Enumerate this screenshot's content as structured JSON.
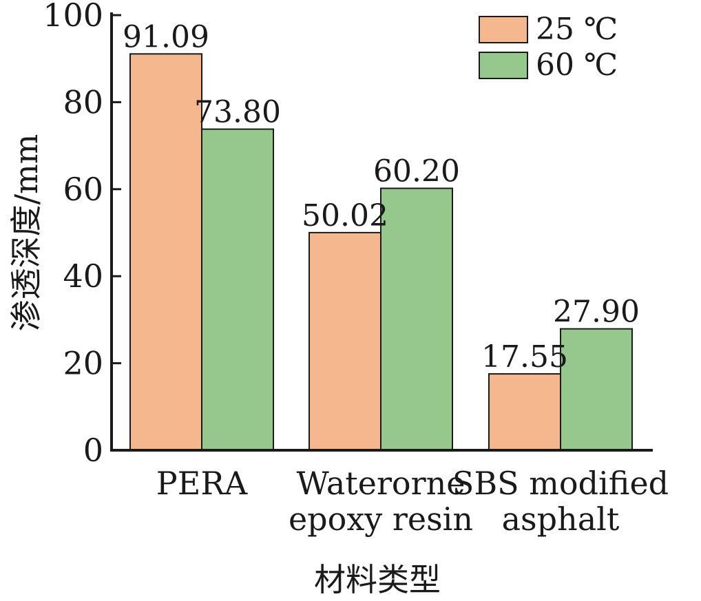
{
  "colors": {
    "series_25": "#F5B78E",
    "series_60": "#96C88E",
    "axis": "#1a1a1a"
  },
  "chart_data": {
    "type": "bar",
    "title": "",
    "xlabel": "材料类型",
    "ylabel": "渗透深度/mm",
    "ylim": [
      0,
      100
    ],
    "yticks": [
      0,
      20,
      40,
      60,
      80,
      100
    ],
    "categories": [
      [
        "PERA"
      ],
      [
        "Waterorne",
        "epoxy resin"
      ],
      [
        "SBS modified",
        "asphalt"
      ]
    ],
    "series": [
      {
        "name": "25 ℃",
        "values": [
          91.09,
          50.02,
          17.55
        ],
        "labels": [
          "91.09",
          "50.02",
          "17.55"
        ]
      },
      {
        "name": "60 ℃",
        "values": [
          73.8,
          60.2,
          27.9
        ],
        "labels": [
          "73.80",
          "60.20",
          "27.90"
        ]
      }
    ],
    "legend_position": "top-right",
    "grid": false
  }
}
